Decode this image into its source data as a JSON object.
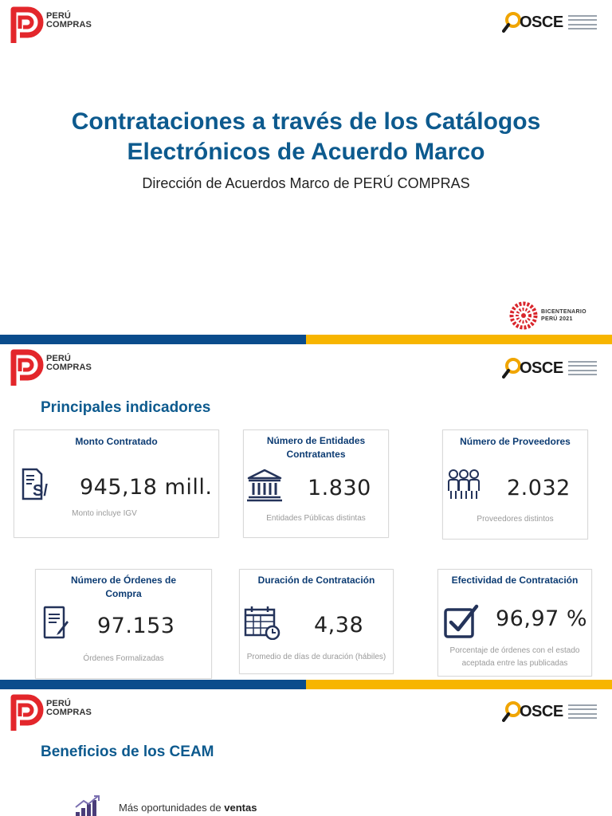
{
  "brand": {
    "peru_compras_line1": "PERÚ",
    "peru_compras_line2": "COMPRAS",
    "osce": "OSCE",
    "bicentenario_line1": "BICENTENARIO",
    "bicentenario_line2": "PERÚ 2021"
  },
  "slide1": {
    "title_line1": "Contrataciones a través de los Catálogos",
    "title_line2": "Electrónicos de Acuerdo Marco",
    "subtitle": "Dirección de Acuerdos Marco de PERÚ COMPRAS"
  },
  "slide2": {
    "heading": "Principales indicadores",
    "cards": [
      {
        "title": "Monto Contratado",
        "value": "945,18 mill.",
        "note": "Monto incluye IGV",
        "icon": "money-document-icon"
      },
      {
        "title_line1": "Número de Entidades",
        "title_line2": "Contratantes",
        "value": "1.830",
        "note": "Entidades Públicas distintas",
        "icon": "government-building-icon"
      },
      {
        "title": "Número de Proveedores",
        "value": "2.032",
        "note": "Proveedores distintos",
        "icon": "people-group-icon"
      },
      {
        "title_line1": "Número de Órdenes de",
        "title_line2": "Compra",
        "value": "97.153",
        "note": "Órdenes Formalizadas",
        "icon": "order-form-icon"
      },
      {
        "title": "Duración de Contratación",
        "value": "4,38",
        "note": "Promedio de días de duración (hábiles)",
        "icon": "calendar-clock-icon"
      },
      {
        "title": "Efectividad de Contratación",
        "value": "96,97 %",
        "note_line1": "Porcentaje de órdenes con el estado",
        "note_line2": "aceptada entre las publicadas",
        "icon": "checkbox-icon"
      }
    ]
  },
  "slide3": {
    "heading": "Beneficios de los CEAM",
    "benefit_prefix": "Más oportunidades de ",
    "benefit_bold": "ventas",
    "benefit_icon": "growth-chart-icon"
  },
  "colors": {
    "blue": "#0a4c8c",
    "yellow": "#f7b500",
    "title_blue": "#0d5a8e",
    "logo_red": "#e3262b"
  }
}
